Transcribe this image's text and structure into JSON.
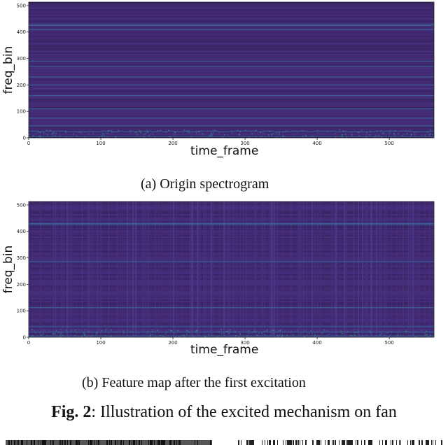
{
  "chart_data": [
    {
      "type": "heatmap",
      "title": "",
      "xlabel": "time_frame",
      "ylabel": "freq_bin",
      "xlim": [
        0,
        562
      ],
      "ylim": [
        0,
        513
      ],
      "x_ticks": [
        0,
        100,
        200,
        300,
        400,
        500
      ],
      "y_ticks": [
        0,
        100,
        200,
        300,
        400,
        500
      ],
      "colormap": "viridis",
      "bright_freq_bands": [
        5,
        25,
        45,
        75,
        110,
        160,
        200,
        230,
        270,
        290,
        410,
        425,
        430
      ],
      "caption": "(a) Origin spectrogram"
    },
    {
      "type": "heatmap",
      "title": "",
      "xlabel": "time_frame",
      "ylabel": "freq_bin",
      "xlim": [
        0,
        562
      ],
      "ylim": [
        0,
        513
      ],
      "x_ticks": [
        0,
        100,
        200,
        300,
        400,
        500
      ],
      "y_ticks": [
        0,
        100,
        200,
        300,
        400,
        500
      ],
      "colormap": "viridis",
      "bright_freq_bands": [
        5,
        20,
        40,
        112,
        285,
        425,
        430
      ],
      "caption": "(b) Feature map after the first excitation"
    }
  ],
  "figure_caption": {
    "label": "Fig. 2",
    "text": ": Illustration of the excited mechanism on fan"
  }
}
